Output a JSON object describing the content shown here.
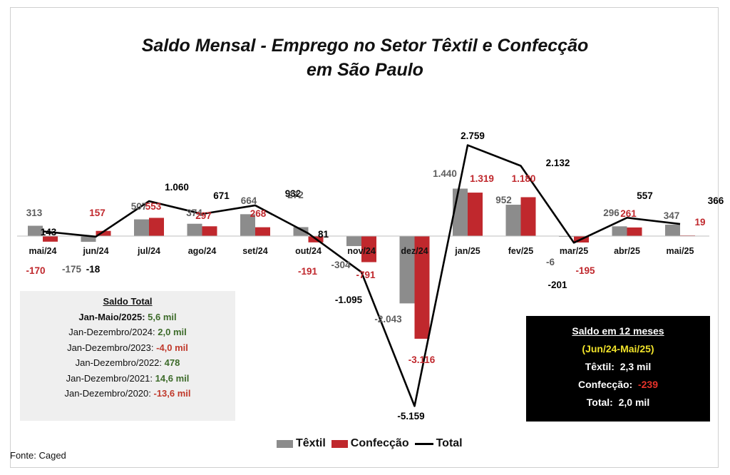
{
  "title_line1": "Saldo Mensal - Emprego no Setor Têxtil e Confecção",
  "title_line2": "em São Paulo",
  "chart_data": {
    "type": "bar",
    "categories": [
      "mai/24",
      "jun/24",
      "jul/24",
      "ago/24",
      "set/24",
      "out/24",
      "nov/24",
      "dez/24",
      "jan/25",
      "fev/25",
      "mar/25",
      "abr/25",
      "mai/25"
    ],
    "series": [
      {
        "name": "Têxtil",
        "kind": "bar",
        "color": "#8c8c8c",
        "values": [
          313,
          -175,
          507,
          374,
          664,
          272,
          -304,
          -2043,
          1440,
          952,
          -6,
          296,
          347
        ],
        "labels": [
          "313",
          "-175",
          "507",
          "374",
          "664",
          "272",
          "-304",
          "-2.043",
          "1.440",
          "952",
          "-6",
          "296",
          "347"
        ]
      },
      {
        "name": "Confecção",
        "kind": "bar",
        "color": "#c0282d",
        "values": [
          -170,
          157,
          553,
          297,
          268,
          -191,
          -791,
          -3116,
          1319,
          1180,
          -195,
          261,
          19
        ],
        "labels": [
          "-170",
          "157",
          "553",
          "297",
          "268",
          "-191",
          "-791",
          "-3.116",
          "1.319",
          "1.180",
          "-195",
          "261",
          "19"
        ]
      },
      {
        "name": "Total",
        "kind": "line",
        "color": "#000000",
        "values": [
          143,
          -18,
          1060,
          671,
          932,
          81,
          -1095,
          -5159,
          2759,
          2132,
          -201,
          557,
          366
        ],
        "labels": [
          "143",
          "-18",
          "1.060",
          "671",
          "932",
          "81",
          "-1.095",
          "-5.159",
          "2.759",
          "2.132",
          "-201",
          "557",
          "366"
        ]
      }
    ],
    "ylim": [
      -5159,
      2759
    ],
    "grid": false,
    "legend_position": "bottom"
  },
  "summary_box": {
    "header": "Saldo Total",
    "rows": [
      {
        "label": "Jan-Maio/2025:",
        "value": "5,6 mil",
        "sign": "pos",
        "bold_label": true
      },
      {
        "label": "Jan-Dezembro/2024:",
        "value": "2,0 mil",
        "sign": "pos",
        "bold_label": false
      },
      {
        "label": "Jan-Dezembro/2023:",
        "value": "-4,0 mil",
        "sign": "neg",
        "bold_label": false
      },
      {
        "label": "Jan-Dezembro/2022:",
        "value": "478",
        "sign": "pos",
        "bold_label": false
      },
      {
        "label": "Jan-Dezembro/2021:",
        "value": "14,6 mil",
        "sign": "pos",
        "bold_label": false
      },
      {
        "label": "Jan-Dezembro/2020:",
        "value": "-13,6 mil",
        "sign": "neg",
        "bold_label": false
      }
    ]
  },
  "box12": {
    "header": "Saldo em 12 meses",
    "period": "(Jun/24-Mai/25)",
    "textil_label": "Têxtil:",
    "textil_value": "2,3 mil",
    "confeccao_label": "Confecção:",
    "confeccao_value": "-239",
    "total_label": "Total:",
    "total_value": "2,0 mil"
  },
  "legend": {
    "textil": "Têxtil",
    "confeccao": "Confecção",
    "total": "Total"
  },
  "source": "Fonte: Caged"
}
